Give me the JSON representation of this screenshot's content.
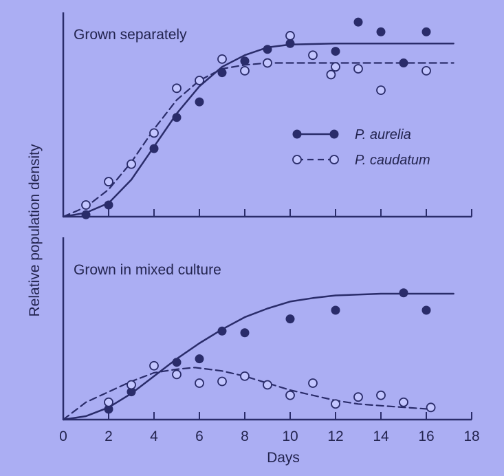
{
  "colors": {
    "background": "#abaef3",
    "ink": "#2a2c6a",
    "open_marker_fill": "#c3c6ff"
  },
  "figure": {
    "ylabel": "Relative population density",
    "xlabel": "Days",
    "x_ticks": [
      "0",
      "2",
      "4",
      "6",
      "8",
      "10",
      "12",
      "14",
      "16",
      "18"
    ]
  },
  "legend": {
    "aurelia_label": "P. aurelia",
    "caudatum_label": "P. caudatum"
  },
  "chart_data": [
    {
      "type": "scatter",
      "title": "Grown separately",
      "xlabel": "Days",
      "ylabel": "Relative population density",
      "xlim": [
        0,
        18
      ],
      "ylim": [
        0,
        1.05
      ],
      "legend_position": "right",
      "series": [
        {
          "name": "P. aurelia",
          "marker": "filled-circle",
          "line": "solid",
          "points": [
            [
              1,
              0.01
            ],
            [
              2,
              0.06
            ],
            [
              4,
              0.35
            ],
            [
              5,
              0.51
            ],
            [
              6,
              0.59
            ],
            [
              7,
              0.74
            ],
            [
              8,
              0.8
            ],
            [
              9,
              0.86
            ],
            [
              10,
              0.89
            ],
            [
              12,
              0.85
            ],
            [
              13,
              1.0
            ],
            [
              14,
              0.95
            ],
            [
              15,
              0.79
            ],
            [
              16,
              0.95
            ]
          ],
          "fit": [
            [
              0,
              0.0
            ],
            [
              1,
              0.02
            ],
            [
              2,
              0.07
            ],
            [
              3,
              0.19
            ],
            [
              4,
              0.36
            ],
            [
              5,
              0.53
            ],
            [
              6,
              0.67
            ],
            [
              7,
              0.77
            ],
            [
              8,
              0.83
            ],
            [
              9,
              0.87
            ],
            [
              10,
              0.885
            ],
            [
              12,
              0.89
            ],
            [
              17.2,
              0.89
            ]
          ]
        },
        {
          "name": "P. caudatum",
          "marker": "open-circle",
          "line": "dashed",
          "points": [
            [
              1,
              0.06
            ],
            [
              2,
              0.18
            ],
            [
              3,
              0.27
            ],
            [
              4,
              0.43
            ],
            [
              5,
              0.66
            ],
            [
              6,
              0.7
            ],
            [
              7,
              0.81
            ],
            [
              8,
              0.75
            ],
            [
              9,
              0.79
            ],
            [
              10,
              0.93
            ],
            [
              11,
              0.83
            ],
            [
              11.8,
              0.73
            ],
            [
              12,
              0.77
            ],
            [
              13,
              0.76
            ],
            [
              14,
              0.65
            ],
            [
              16,
              0.75
            ]
          ],
          "fit": [
            [
              0,
              0.0
            ],
            [
              1,
              0.05
            ],
            [
              2,
              0.14
            ],
            [
              3,
              0.28
            ],
            [
              4,
              0.45
            ],
            [
              5,
              0.6
            ],
            [
              6,
              0.7
            ],
            [
              7,
              0.76
            ],
            [
              8,
              0.78
            ],
            [
              9,
              0.79
            ],
            [
              10,
              0.79
            ],
            [
              12,
              0.79
            ],
            [
              17.2,
              0.79
            ]
          ]
        }
      ]
    },
    {
      "type": "scatter",
      "title": "Grown in mixed culture",
      "xlabel": "Days",
      "ylabel": "Relative population density",
      "xlim": [
        0,
        18
      ],
      "ylim": [
        0,
        1.05
      ],
      "series": [
        {
          "name": "P. aurelia",
          "marker": "filled-circle",
          "line": "solid",
          "points": [
            [
              2,
              0.06
            ],
            [
              3,
              0.16
            ],
            [
              5,
              0.33
            ],
            [
              6,
              0.35
            ],
            [
              7,
              0.51
            ],
            [
              8,
              0.5
            ],
            [
              10,
              0.58
            ],
            [
              12,
              0.63
            ],
            [
              15,
              0.73
            ],
            [
              16,
              0.63
            ]
          ],
          "fit": [
            [
              0,
              0.0
            ],
            [
              1,
              0.02
            ],
            [
              2,
              0.07
            ],
            [
              3,
              0.15
            ],
            [
              4,
              0.25
            ],
            [
              5,
              0.35
            ],
            [
              6,
              0.44
            ],
            [
              7,
              0.52
            ],
            [
              8,
              0.59
            ],
            [
              9,
              0.64
            ],
            [
              10,
              0.68
            ],
            [
              11,
              0.7
            ],
            [
              12,
              0.715
            ],
            [
              13,
              0.72
            ],
            [
              14,
              0.725
            ],
            [
              17.2,
              0.725
            ]
          ]
        },
        {
          "name": "P. caudatum",
          "marker": "open-circle",
          "line": "dashed",
          "points": [
            [
              2,
              0.1
            ],
            [
              3,
              0.2
            ],
            [
              4,
              0.31
            ],
            [
              5,
              0.26
            ],
            [
              6,
              0.21
            ],
            [
              7,
              0.22
            ],
            [
              8,
              0.25
            ],
            [
              9,
              0.2
            ],
            [
              10,
              0.14
            ],
            [
              11,
              0.21
            ],
            [
              12,
              0.09
            ],
            [
              13,
              0.13
            ],
            [
              14,
              0.14
            ],
            [
              15,
              0.1
            ],
            [
              16.2,
              0.07
            ]
          ],
          "fit": [
            [
              0,
              0.0
            ],
            [
              1,
              0.1
            ],
            [
              2,
              0.16
            ],
            [
              3,
              0.22
            ],
            [
              4,
              0.27
            ],
            [
              5,
              0.29
            ],
            [
              5.8,
              0.3
            ],
            [
              7,
              0.28
            ],
            [
              8,
              0.25
            ],
            [
              9,
              0.21
            ],
            [
              10,
              0.17
            ],
            [
              11,
              0.14
            ],
            [
              12,
              0.11
            ],
            [
              13,
              0.09
            ],
            [
              14,
              0.08
            ],
            [
              16.2,
              0.06
            ]
          ]
        }
      ]
    }
  ]
}
